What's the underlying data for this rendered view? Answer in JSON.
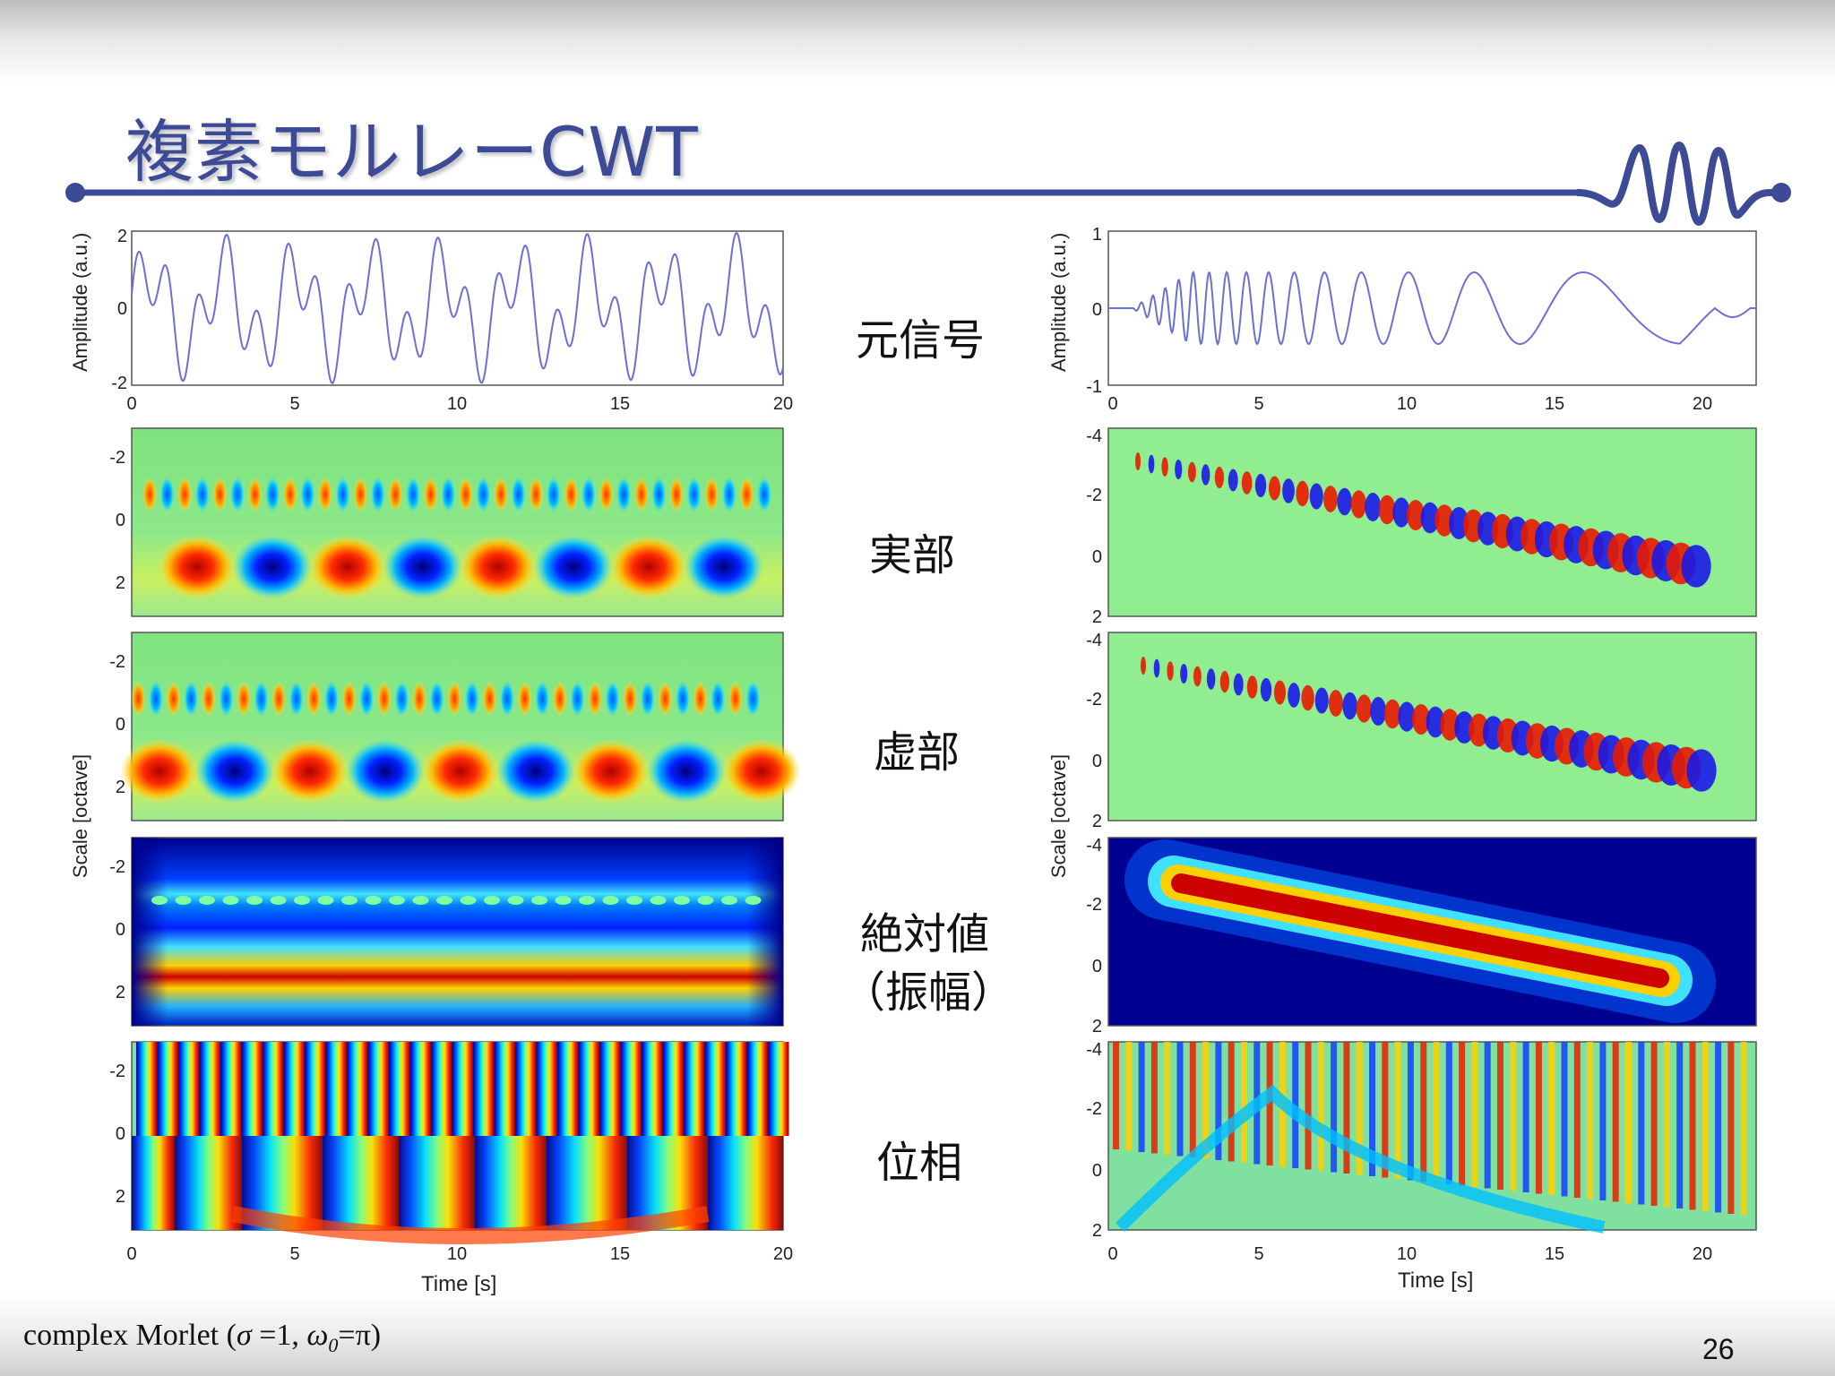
{
  "title": "複素モルレーCWT",
  "colors": {
    "title": "#3d4a96",
    "rule": "#3d4a96",
    "signal": "#6b6fd6"
  },
  "row_labels": {
    "signal": "元信号",
    "real": "実部",
    "imag": "虚部",
    "abs_line1": "絶対値",
    "abs_line2": "（振幅）",
    "phase": "位相"
  },
  "left": {
    "amplitude_label": "Amplitude (a.u.)",
    "scale_label": "Scale  [octave]",
    "time_label": "Time [s]",
    "signal_ticks_y": [
      "2",
      "0",
      "-2"
    ],
    "x_ticks": [
      "0",
      "5",
      "10",
      "15",
      "20"
    ],
    "scale_ticks": [
      "-2",
      "0",
      "2"
    ]
  },
  "right": {
    "amplitude_label": "Amplitude (a.u.)",
    "scale_label": "Scale  [octave]",
    "time_label": "Time [s]",
    "signal_ticks_y": [
      "1",
      "0",
      "-1"
    ],
    "x_ticks": [
      "0",
      "5",
      "10",
      "15",
      "20"
    ],
    "scale_ticks": [
      "-4",
      "-2",
      "0",
      "2"
    ]
  },
  "footer": {
    "caption_prefix": "complex Morlet (",
    "sigma": "σ",
    "sigma_eq": " =1, ",
    "omega": "ω",
    "omega_sub": "0",
    "omega_eq": "=π)",
    "page": "26"
  }
}
